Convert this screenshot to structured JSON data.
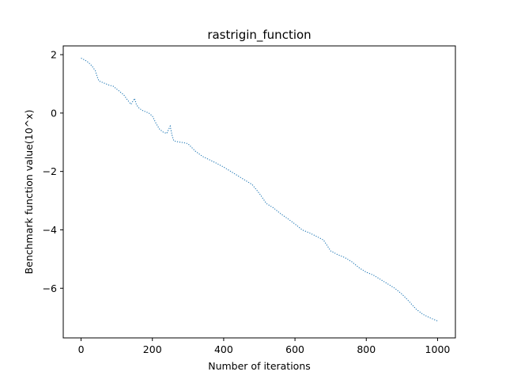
{
  "chart_data": {
    "type": "line",
    "title": "rastrigin_function",
    "xlabel": "Number of iterations",
    "ylabel": "Benchmark function value(10^x)",
    "xlim": [
      -50,
      1050
    ],
    "ylim": [
      -7.7,
      2.3
    ],
    "xticks": [
      0,
      200,
      400,
      600,
      800,
      1000
    ],
    "xtick_labels": [
      "0",
      "200",
      "400",
      "600",
      "800",
      "1000"
    ],
    "yticks": [
      2,
      0,
      -2,
      -4,
      -6
    ],
    "ytick_labels": [
      "2",
      "0",
      "−2",
      "−4",
      "−6"
    ],
    "grid": false,
    "line_style": "dotted",
    "color": "#1f77b4",
    "series": [
      {
        "x": [
          0,
          10,
          20,
          30,
          40,
          45,
          50,
          60,
          70,
          80,
          90,
          100,
          110,
          120,
          130,
          140,
          150,
          155,
          160,
          170,
          180,
          190,
          200,
          210,
          220,
          230,
          240,
          250,
          255,
          260,
          270,
          280,
          290,
          300,
          320,
          340,
          360,
          380,
          400,
          420,
          440,
          460,
          480,
          500,
          520,
          540,
          560,
          580,
          600,
          620,
          640,
          660,
          680,
          700,
          720,
          740,
          760,
          780,
          800,
          820,
          840,
          860,
          880,
          900,
          920,
          940,
          960,
          980,
          1000
        ],
        "y": [
          1.88,
          1.82,
          1.74,
          1.62,
          1.45,
          1.25,
          1.1,
          1.05,
          1.0,
          0.95,
          0.92,
          0.82,
          0.72,
          0.62,
          0.45,
          0.3,
          0.5,
          0.3,
          0.2,
          0.1,
          0.05,
          0.0,
          -0.1,
          -0.35,
          -0.55,
          -0.65,
          -0.7,
          -0.45,
          -0.75,
          -0.95,
          -0.98,
          -1.0,
          -1.02,
          -1.05,
          -1.3,
          -1.48,
          -1.6,
          -1.72,
          -1.85,
          -2.0,
          -2.15,
          -2.3,
          -2.45,
          -2.75,
          -3.1,
          -3.25,
          -3.45,
          -3.62,
          -3.8,
          -4.0,
          -4.1,
          -4.22,
          -4.35,
          -4.72,
          -4.85,
          -4.95,
          -5.1,
          -5.3,
          -5.45,
          -5.55,
          -5.7,
          -5.85,
          -6.0,
          -6.2,
          -6.45,
          -6.72,
          -6.9,
          -7.02,
          -7.12
        ]
      }
    ]
  }
}
